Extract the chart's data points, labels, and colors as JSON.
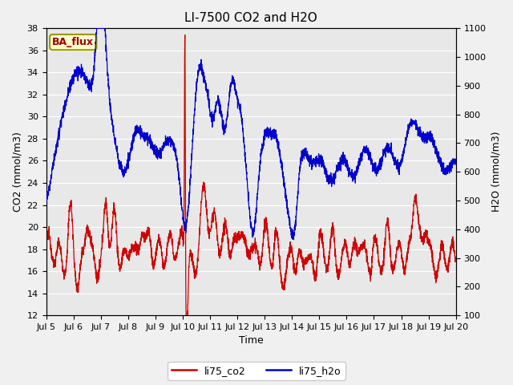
{
  "title": "LI-7500 CO2 and H2O",
  "xlabel": "Time",
  "ylabel_left": "CO2 (mmol/m3)",
  "ylabel_right": "H2O (mmol/m3)",
  "ylim_left": [
    12,
    38
  ],
  "ylim_right": [
    100,
    1100
  ],
  "yticks_left": [
    12,
    14,
    16,
    18,
    20,
    22,
    24,
    26,
    28,
    30,
    32,
    34,
    36,
    38
  ],
  "yticks_right": [
    100,
    200,
    300,
    400,
    500,
    600,
    700,
    800,
    900,
    1000,
    1100
  ],
  "xtick_labels": [
    "Jul 5",
    "Jul 6",
    "Jul 7",
    "Jul 8",
    "Jul 9",
    "Jul 10",
    "Jul 11",
    "Jul 12",
    "Jul 13",
    "Jul 14",
    "Jul 15",
    "Jul 16",
    "Jul 17",
    "Jul 18",
    "Jul 19",
    "Jul 20"
  ],
  "color_co2": "#cc0000",
  "color_h2o": "#0000cc",
  "legend_co2": "li75_co2",
  "legend_h2o": "li75_h2o",
  "annotation_text": "BA_flux",
  "annotation_color": "#990000",
  "annotation_bg": "#ffffcc",
  "annotation_edge": "#999900",
  "plot_bg": "#e8e8e8",
  "fig_bg": "#f0f0f0",
  "grid_color": "#ffffff",
  "title_fontsize": 11,
  "axis_fontsize": 9,
  "tick_fontsize": 8,
  "linewidth": 0.9
}
